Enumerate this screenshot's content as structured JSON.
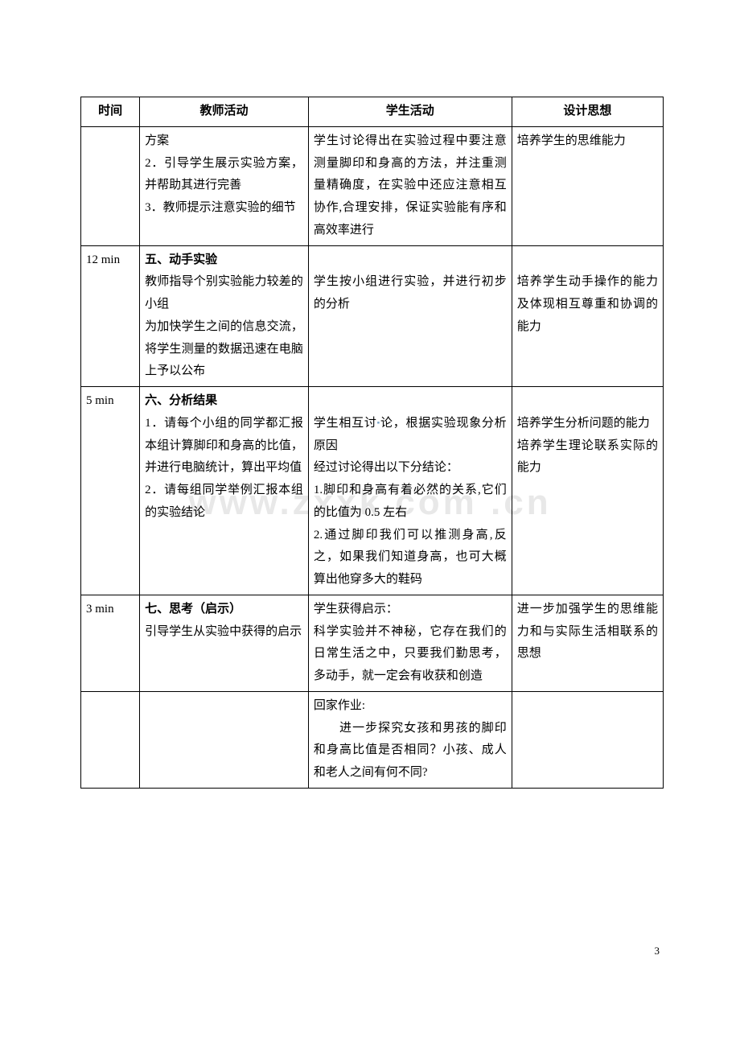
{
  "watermark": "www.zxxk.com .cn",
  "page_number": "3",
  "table": {
    "headers": {
      "time": "时间",
      "teacher": "教师活动",
      "student": "学生活动",
      "design": "设计思想"
    },
    "rows": [
      {
        "time": "",
        "teacher": "方案\n2．引导学生展示实验方案，并帮助其进行完善\n3．教师提示注意实验的细节",
        "student": "学生讨论得出在实验过程中要注意测量脚印和身高的方法，并注重测量精确度，在实验中还应注意相互协作,合理安排，保证实验能有序和高效率进行",
        "design": "培养学生的思维能力"
      },
      {
        "time": "12 min",
        "teacher_bold": "五、动手实验",
        "teacher": "教师指导个别实验能力较差的小组\n为加快学生之间的信息交流，将学生测量的数据迅速在电脑上予以公布",
        "student_bold": "",
        "student": "\n学生按小组进行实验，并进行初步的分析",
        "design": "\n培养学生动手操作的能力及体现相互尊重和协调的能力"
      },
      {
        "time": "5 min",
        "teacher_bold": "六、分析结果",
        "teacher": "1．请每个小组的同学都汇报本组计算脚印和身高的比值，并进行电脑统计，算出平均值\n2．请每组同学举例汇报本组的实验结论",
        "student": "\n学生相互讨论，根据实验现象分析原因\n经过讨论得出以下分结论：\n1.脚印和身高有着必然的关系,它们的比值为 0.5 左右\n2.通过脚印我们可以推测身高,反之，如果我们知道身高，也可大概算出他穿多大的鞋码",
        "student_has_dot": true,
        "design": "\n培养学生分析问题的能力\n培养学生理论联系实际的能力"
      },
      {
        "time": "3 min",
        "teacher_bold": "七、思考（启示）",
        "teacher": "引导学生从实验中获得的启示",
        "student": "学生获得启示：\n科学实验并不神秘，它存在我们的日常生活之中，只要我们勤思考，多动手，就一定会有收获和创造",
        "design": "进一步加强学生的思维能力和与实际生活相联系的思想"
      },
      {
        "time": "",
        "teacher": "",
        "student": "回家作业:",
        "student_indent": "进一步探究女孩和男孩的脚印和身高比值是否相同？小孩、成人和老人之间有何不同?",
        "design": ""
      }
    ]
  }
}
